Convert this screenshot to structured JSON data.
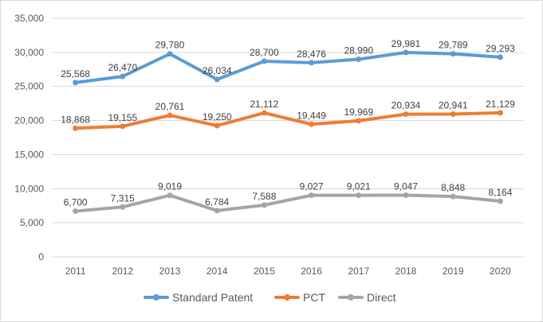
{
  "chart_data": {
    "type": "line",
    "title": "",
    "xlabel": "",
    "ylabel": "",
    "ylim": [
      0,
      35000
    ],
    "yticks": [
      0,
      5000,
      10000,
      15000,
      20000,
      25000,
      30000,
      35000
    ],
    "ytick_labels": [
      "0",
      "5,000",
      "10,000",
      "15,000",
      "20,000",
      "25,000",
      "30,000",
      "35,000"
    ],
    "grid": true,
    "legend_position": "bottom",
    "categories": [
      "2011",
      "2012",
      "2013",
      "2014",
      "2015",
      "2016",
      "2017",
      "2018",
      "2019",
      "2020"
    ],
    "series": [
      {
        "name": "Standard Patent",
        "color": "#5b9bd5",
        "values": [
          25568,
          26470,
          29780,
          26034,
          28700,
          28476,
          28990,
          29981,
          29789,
          29293
        ],
        "labels": [
          "25,568",
          "26,470",
          "29,780",
          "26,034",
          "28,700",
          "28,476",
          "28,990",
          "29,981",
          "29,789",
          "29,293"
        ]
      },
      {
        "name": "PCT",
        "color": "#ed7d31",
        "values": [
          18868,
          19155,
          20761,
          19250,
          21112,
          19449,
          19969,
          20934,
          20941,
          21129
        ],
        "labels": [
          "18,868",
          "19,155",
          "20,761",
          "19,250",
          "21,112",
          "19,449",
          "19,969",
          "20,934",
          "20,941",
          "21,129"
        ]
      },
      {
        "name": "Direct",
        "color": "#a5a5a5",
        "values": [
          6700,
          7315,
          9019,
          6784,
          7588,
          9027,
          9021,
          9047,
          8848,
          8164
        ],
        "labels": [
          "6,700",
          "7,315",
          "9,019",
          "6,784",
          "7,588",
          "9,027",
          "9,021",
          "9,047",
          "8,848",
          "8,164"
        ]
      }
    ]
  }
}
